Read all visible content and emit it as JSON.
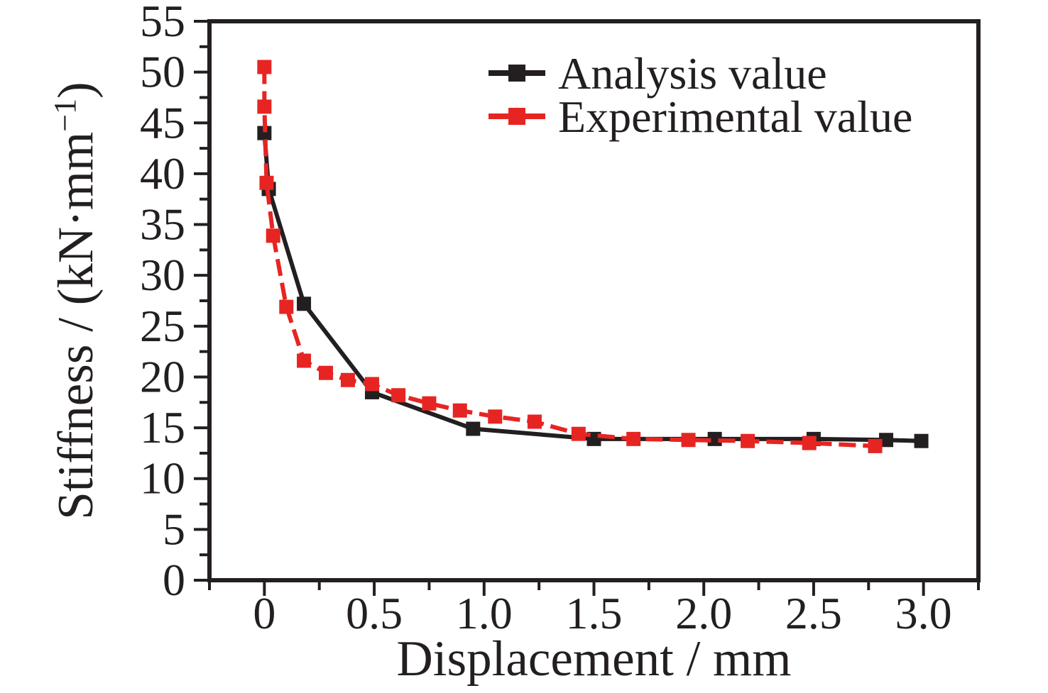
{
  "figure": {
    "background": "#ffffff",
    "text_color": "#231f20"
  },
  "chart_data": {
    "type": "line",
    "title": "",
    "xlabel": "Displacement / mm",
    "ylabel": "Stiffness / (kN·mm⁻¹)",
    "ylabel_parts": {
      "pre": "Stiffness / (kN·mm",
      "sup": "−1",
      "post": ")"
    },
    "xlim": [
      -0.25,
      3.25
    ],
    "ylim": [
      0,
      55
    ],
    "x_major_tick_values": [
      0,
      0.5,
      1.0,
      1.5,
      2.0,
      2.5,
      3.0
    ],
    "x_major_tick_labels": [
      "0",
      "0.5",
      "1.0",
      "1.5",
      "2.0",
      "2.5",
      "3.0"
    ],
    "x_minor_tick_values": [
      -0.25,
      0.25,
      0.75,
      1.25,
      1.75,
      2.25,
      2.75,
      3.25
    ],
    "y_major_tick_values": [
      0,
      5,
      10,
      15,
      20,
      25,
      30,
      35,
      40,
      45,
      50,
      55
    ],
    "y_major_tick_labels": [
      "0",
      "5",
      "10",
      "15",
      "20",
      "25",
      "30",
      "35",
      "40",
      "45",
      "50",
      "55"
    ],
    "y_minor_tick_values": [
      2.5,
      7.5,
      12.5,
      17.5,
      22.5,
      27.5,
      32.5,
      37.5,
      42.5,
      47.5,
      52.5
    ],
    "grid": false,
    "box": true,
    "tick_direction": "out",
    "legend_position": "top-right-inside",
    "series": [
      {
        "name": "Analysis value",
        "color": "#231f20",
        "line_style": "solid",
        "marker": "square",
        "points": [
          [
            0.0,
            44.0
          ],
          [
            0.02,
            38.5
          ],
          [
            0.18,
            27.2
          ],
          [
            0.49,
            18.5
          ],
          [
            0.95,
            14.9
          ],
          [
            1.5,
            13.9
          ],
          [
            2.05,
            13.9
          ],
          [
            2.5,
            13.9
          ],
          [
            2.83,
            13.8
          ],
          [
            2.99,
            13.7
          ]
        ]
      },
      {
        "name": "Experimental value",
        "color": "#e62522",
        "line_style": "dashed",
        "marker": "square",
        "points": [
          [
            0.0,
            50.5
          ],
          [
            0.0,
            46.6
          ],
          [
            0.01,
            39.1
          ],
          [
            0.04,
            33.9
          ],
          [
            0.1,
            26.9
          ],
          [
            0.18,
            21.6
          ],
          [
            0.28,
            20.4
          ],
          [
            0.38,
            19.7
          ],
          [
            0.49,
            19.3
          ],
          [
            0.61,
            18.2
          ],
          [
            0.75,
            17.4
          ],
          [
            0.89,
            16.7
          ],
          [
            1.05,
            16.1
          ],
          [
            1.23,
            15.6
          ],
          [
            1.43,
            14.4
          ],
          [
            1.68,
            13.9
          ],
          [
            1.93,
            13.8
          ],
          [
            2.2,
            13.7
          ],
          [
            2.48,
            13.5
          ],
          [
            2.78,
            13.2
          ]
        ]
      }
    ]
  }
}
